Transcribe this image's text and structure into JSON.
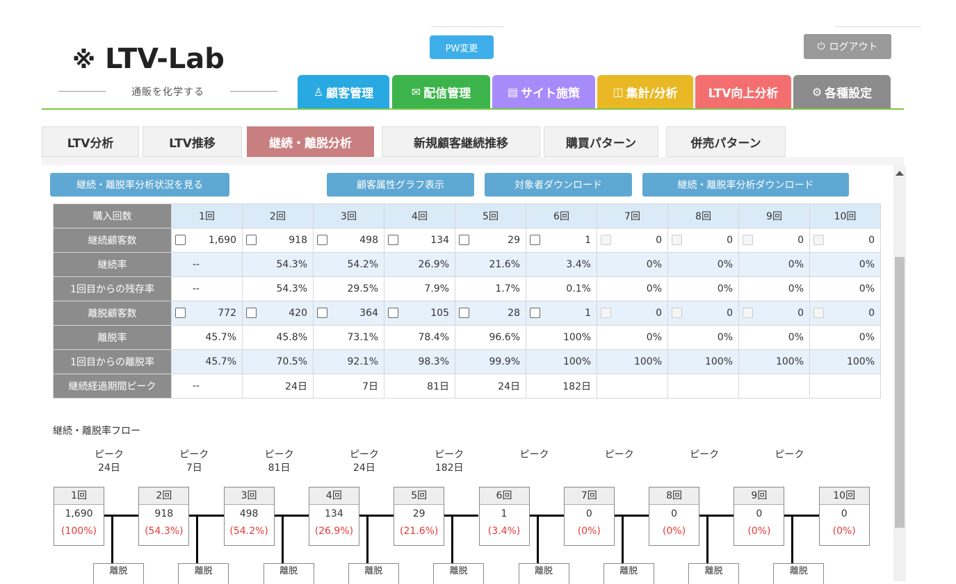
{
  "header": {
    "logo_text": "LTV-Lab",
    "logo_tagline": "通販を化学する",
    "pw_button": "PW変更",
    "logout_button": "ログアウト"
  },
  "nav": [
    {
      "label": "顧客管理",
      "color": "#29a9e1",
      "icon": "user-icon"
    },
    {
      "label": "配信管理",
      "color": "#3cb44b",
      "icon": "mail-icon"
    },
    {
      "label": "サイト施策",
      "color": "#a78bfa",
      "icon": "document-icon"
    },
    {
      "label": "集計/分析",
      "color": "#e9b824",
      "icon": "chart-icon"
    },
    {
      "label": "LTV向上分析",
      "color": "#f36f6f",
      "icon": ""
    },
    {
      "label": "各種設定",
      "color": "#8c8c8c",
      "icon": "gear-icon"
    }
  ],
  "subtabs": [
    "LTV分析",
    "LTV推移",
    "継続・離脱分析",
    "新規顧客継続推移",
    "購買パターン",
    "併売パターン"
  ],
  "active_subtab": "継続・離脱分析",
  "actions": {
    "view_status": "継続・離脱率分析状況を見る",
    "attr_graph": "顧客属性グラフ表示",
    "target_download": "対象者ダウンロード",
    "analysis_download": "継続・離脱率分析ダウンロード"
  },
  "table": {
    "header_label": "購入回数",
    "columns": [
      "1回",
      "2回",
      "3回",
      "4回",
      "5回",
      "6回",
      "7回",
      "8回",
      "9回",
      "10回"
    ],
    "rows": [
      {
        "label": "継続顧客数",
        "checkbox": true,
        "values": [
          "1,690",
          "918",
          "498",
          "134",
          "29",
          "1",
          "0",
          "0",
          "0",
          "0"
        ],
        "style": "white"
      },
      {
        "label": "継続率",
        "checkbox": false,
        "values": [
          "--",
          "54.3%",
          "54.2%",
          "26.9%",
          "21.6%",
          "3.4%",
          "0%",
          "0%",
          "0%",
          "0%"
        ],
        "style": "blue"
      },
      {
        "label": "1回目からの残存率",
        "checkbox": false,
        "values": [
          "--",
          "54.3%",
          "29.5%",
          "7.9%",
          "1.7%",
          "0.1%",
          "0%",
          "0%",
          "0%",
          "0%"
        ],
        "style": "white"
      },
      {
        "label": "離脱顧客数",
        "checkbox": true,
        "values": [
          "772",
          "420",
          "364",
          "105",
          "28",
          "1",
          "0",
          "0",
          "0",
          "0"
        ],
        "style": "blue"
      },
      {
        "label": "離脱率",
        "checkbox": false,
        "values": [
          "45.7%",
          "45.8%",
          "73.1%",
          "78.4%",
          "96.6%",
          "100%",
          "0%",
          "0%",
          "0%",
          "0%"
        ],
        "style": "white"
      },
      {
        "label": "1回目からの離脱率",
        "checkbox": false,
        "values": [
          "45.7%",
          "70.5%",
          "92.1%",
          "98.3%",
          "99.9%",
          "100%",
          "100%",
          "100%",
          "100%",
          "100%"
        ],
        "style": "blue"
      },
      {
        "label": "継続経過期間ピーク",
        "checkbox": false,
        "values": [
          "--",
          "24日",
          "7日",
          "81日",
          "24日",
          "182日",
          "",
          "",
          "",
          ""
        ],
        "style": "white"
      }
    ]
  },
  "flow": {
    "title": "継続・離脱率フロー",
    "peak_label": "ピーク",
    "peaks": [
      "24日",
      "7日",
      "81日",
      "24日",
      "182日",
      "",
      "",
      "",
      ""
    ],
    "nodes": [
      {
        "label": "1回",
        "count": "1,690",
        "pct": "(100%)"
      },
      {
        "label": "2回",
        "count": "918",
        "pct": "(54.3%)"
      },
      {
        "label": "3回",
        "count": "498",
        "pct": "(54.2%)"
      },
      {
        "label": "4回",
        "count": "134",
        "pct": "(26.9%)"
      },
      {
        "label": "5回",
        "count": "29",
        "pct": "(21.6%)"
      },
      {
        "label": "6回",
        "count": "1",
        "pct": "(3.4%)"
      },
      {
        "label": "7回",
        "count": "0",
        "pct": "(0%)"
      },
      {
        "label": "8回",
        "count": "0",
        "pct": "(0%)"
      },
      {
        "label": "9回",
        "count": "0",
        "pct": "(0%)"
      },
      {
        "label": "10回",
        "count": "0",
        "pct": "(0%)"
      }
    ],
    "churn_label": "離脱"
  }
}
